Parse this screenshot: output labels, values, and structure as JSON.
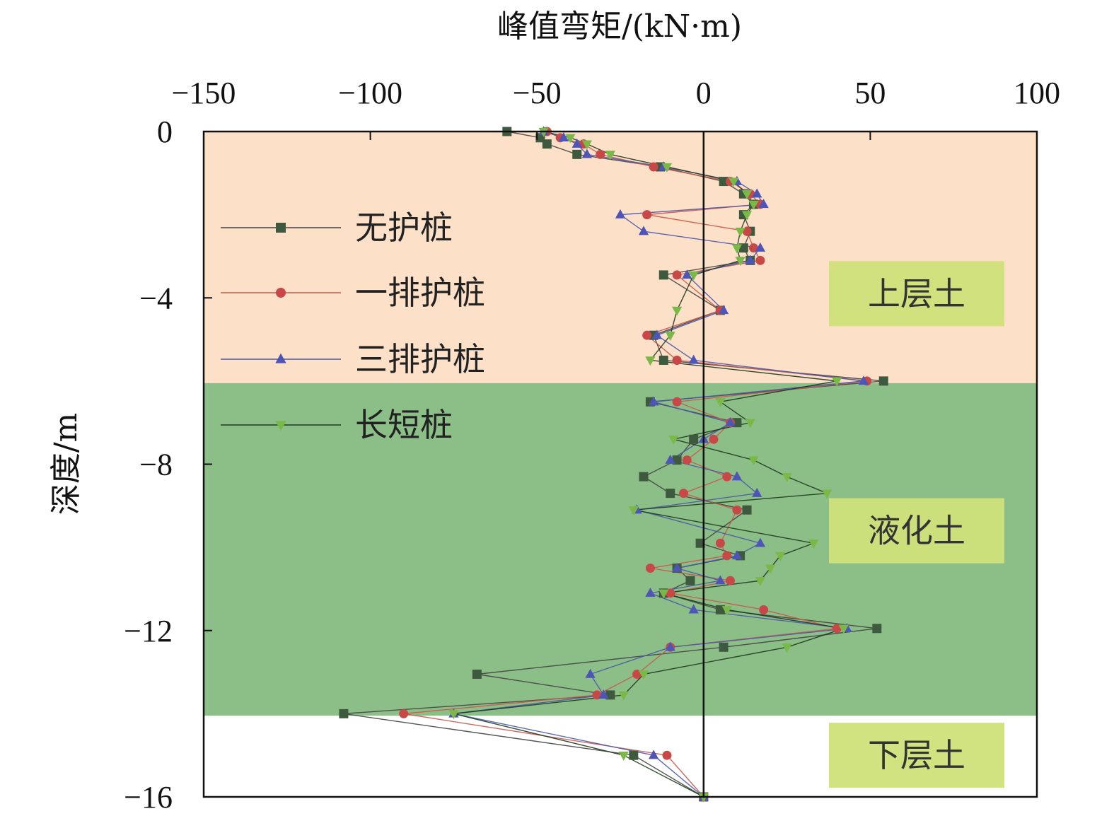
{
  "chart_data": {
    "type": "line",
    "title": "",
    "xlabel": "峰值弯矩/(kN·m)",
    "ylabel": "深度/m",
    "xlim": [
      -150,
      100
    ],
    "ylim": [
      -16,
      0
    ],
    "x_ticks": [
      "−150",
      "−100",
      "−50",
      "0",
      "50",
      "100"
    ],
    "x_tick_values": [
      -150,
      -100,
      -50,
      0,
      50,
      100
    ],
    "y_ticks": [
      "0",
      "−4",
      "−8",
      "−12",
      "−16"
    ],
    "y_tick_values": [
      0,
      -4,
      -8,
      -12,
      -16
    ],
    "x_axis_position": "top",
    "legend_position": "top-left",
    "zones": [
      {
        "label": "上层土",
        "from": 0,
        "to": -6.05,
        "color": "#fde0c8"
      },
      {
        "label": "液化土",
        "from": -6.05,
        "to": -14.05,
        "color": "#8cbf88"
      },
      {
        "label": "下层土",
        "from": -14.05,
        "to": -16,
        "color": "#ffffff"
      }
    ],
    "series": [
      {
        "name": "无护桩",
        "color": "#444444",
        "marker_color": "#3e5a3e",
        "marker": "square",
        "depth": [
          0,
          -0.15,
          -0.3,
          -0.55,
          -0.85,
          -1.2,
          -1.5,
          -1.75,
          -2.0,
          -2.4,
          -2.8,
          -3.1,
          -3.45,
          -4.3,
          -4.9,
          -5.5,
          -6.0,
          -6.5,
          -7.0,
          -7.4,
          -7.9,
          -8.3,
          -8.7,
          -9.1,
          -9.9,
          -10.2,
          -10.5,
          -10.8,
          -11.1,
          -11.5,
          -11.95,
          -12.4,
          -13.05,
          -13.55,
          -14.0,
          -15.0,
          -16.0
        ],
        "moment": [
          -59,
          -49,
          -47,
          -38,
          -13,
          6,
          12,
          15,
          12,
          14,
          12,
          14,
          -12,
          5,
          -15,
          -12,
          54,
          -16,
          10,
          -3,
          -8,
          -18,
          -10,
          13,
          -1,
          11,
          -8,
          -4,
          -12,
          5,
          52,
          6,
          -68,
          -28,
          -108,
          -21,
          0
        ]
      },
      {
        "name": "一排护桩",
        "color": "#c95a4e",
        "marker_color": "#c84848",
        "marker": "circle",
        "depth": [
          0,
          -0.15,
          -0.3,
          -0.55,
          -0.85,
          -1.2,
          -1.5,
          -1.75,
          -2.0,
          -2.4,
          -2.8,
          -3.1,
          -3.45,
          -4.3,
          -4.9,
          -5.5,
          -6.0,
          -6.5,
          -7.0,
          -7.4,
          -7.9,
          -8.3,
          -8.7,
          -9.1,
          -9.9,
          -10.2,
          -10.5,
          -10.8,
          -11.1,
          -11.5,
          -11.95,
          -12.4,
          -13.05,
          -13.55,
          -14.0,
          -15.0,
          -16.0
        ],
        "moment": [
          -47,
          -43,
          -36,
          -31,
          -15,
          8,
          14,
          17,
          -17,
          13,
          15,
          17,
          -8,
          5,
          -17,
          -8,
          49,
          -8,
          8,
          3,
          -5,
          7,
          -6,
          10,
          5,
          7,
          -16,
          8,
          -10,
          18,
          40,
          -10,
          -20,
          -32,
          -90,
          -11,
          0
        ]
      },
      {
        "name": "三排护桩",
        "color": "#4a58a8",
        "marker_color": "#4d55b8",
        "marker": "triangle",
        "depth": [
          0,
          -0.15,
          -0.3,
          -0.55,
          -0.85,
          -1.2,
          -1.5,
          -1.75,
          -2.0,
          -2.4,
          -2.8,
          -3.1,
          -3.45,
          -4.3,
          -4.9,
          -5.5,
          -6.0,
          -6.5,
          -7.0,
          -7.4,
          -7.9,
          -8.3,
          -8.7,
          -9.1,
          -9.9,
          -10.2,
          -10.5,
          -10.8,
          -11.1,
          -11.5,
          -11.95,
          -12.4,
          -13.05,
          -13.55,
          -14.0,
          -15.0,
          -16.0
        ],
        "moment": [
          -48,
          -42,
          -38,
          -35,
          -12,
          10,
          16,
          18,
          -25,
          -18,
          17,
          14,
          -5,
          6,
          -14,
          -3,
          48,
          -15,
          8,
          0,
          -10,
          10,
          16,
          -20,
          17,
          10,
          -8,
          5,
          -16,
          -3,
          43,
          -10,
          -34,
          -30,
          -75,
          -15,
          0
        ]
      },
      {
        "name": "长短桩",
        "color": "#1e3a1e",
        "marker_color": "#7ab848",
        "marker": "triangle-down",
        "depth": [
          0,
          -0.15,
          -0.3,
          -0.55,
          -0.85,
          -1.2,
          -1.5,
          -1.75,
          -2.0,
          -2.4,
          -2.8,
          -3.1,
          -3.45,
          -4.3,
          -4.9,
          -5.5,
          -6.0,
          -6.5,
          -7.0,
          -7.4,
          -7.9,
          -8.3,
          -8.7,
          -9.1,
          -9.9,
          -10.2,
          -10.5,
          -10.8,
          -11.1,
          -11.5,
          -11.95,
          -12.4,
          -13.05,
          -13.55,
          -14.0,
          -15.0,
          -16.0
        ],
        "moment": [
          -48,
          -40,
          -35,
          -28,
          -11,
          9,
          13,
          15,
          13,
          11,
          10,
          11,
          -3,
          -8,
          -10,
          -16,
          40,
          5,
          14,
          -9,
          15,
          25,
          37,
          -21,
          33,
          23,
          20,
          17,
          -12,
          7,
          42,
          25,
          -18,
          -24,
          -75,
          -24,
          0
        ]
      }
    ]
  }
}
